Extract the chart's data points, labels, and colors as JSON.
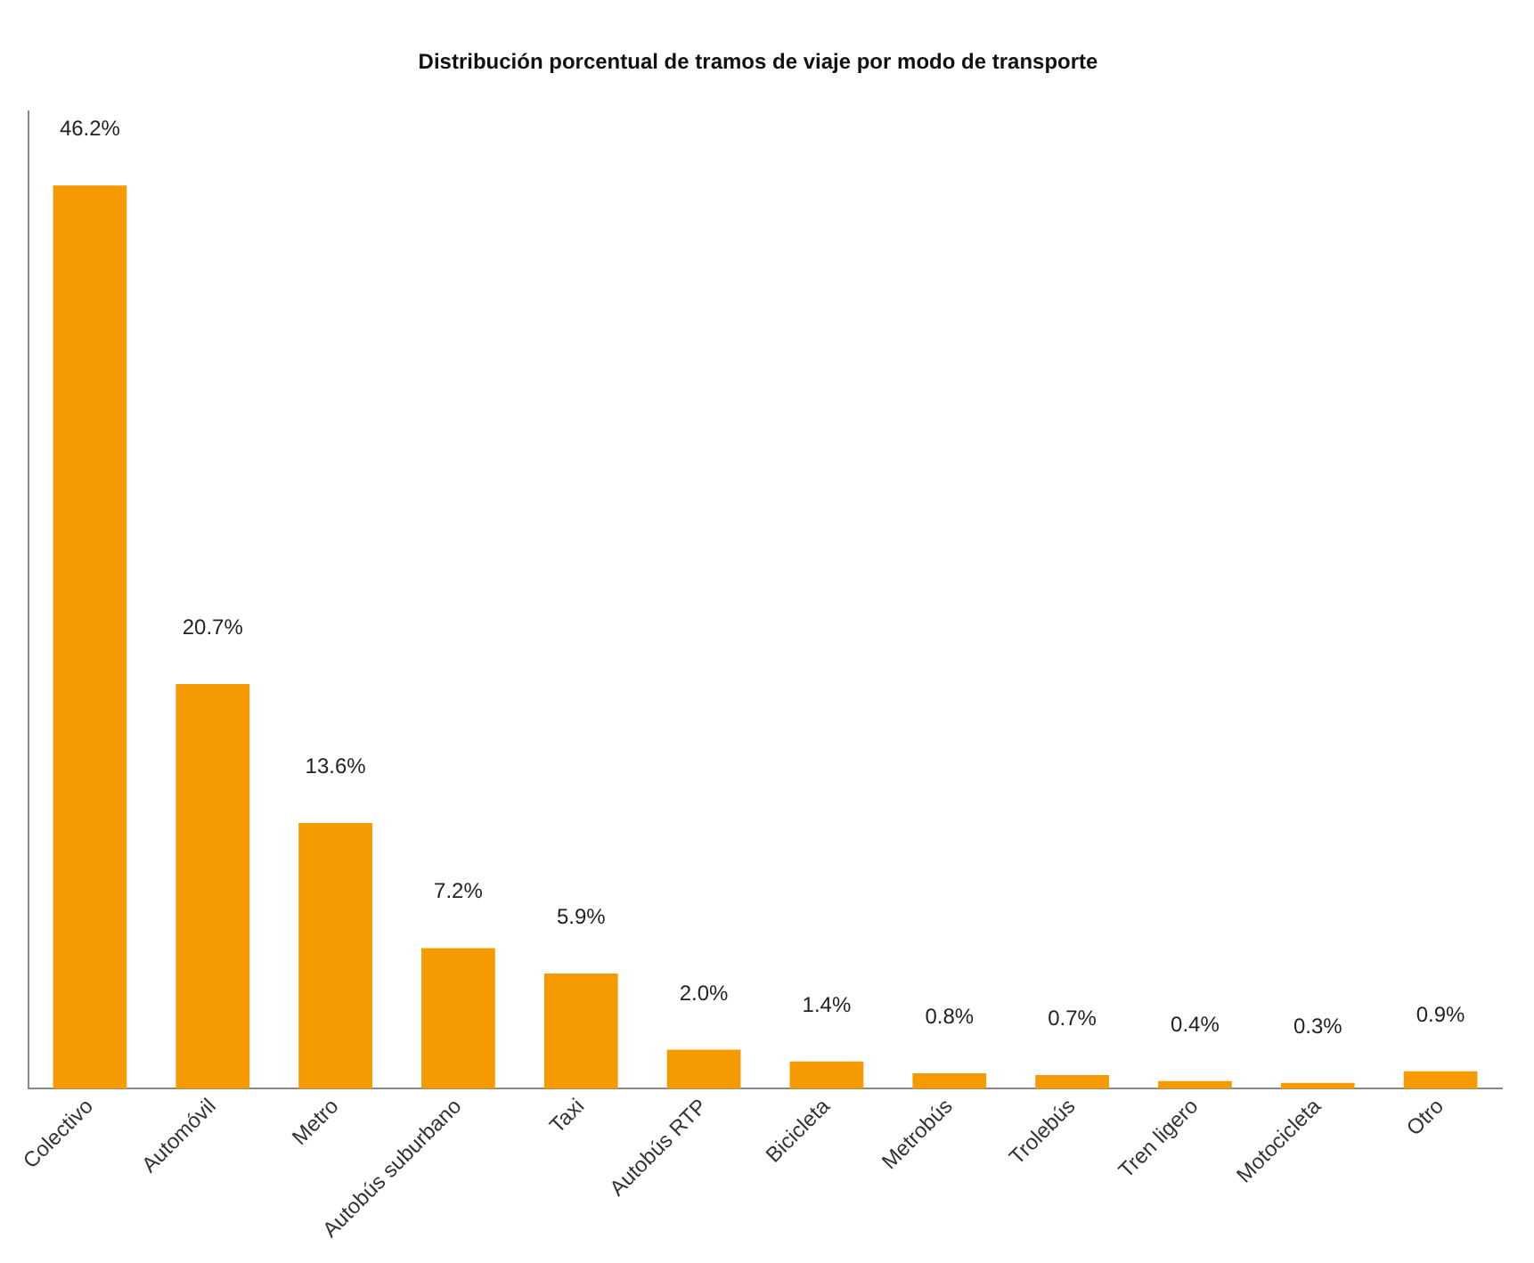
{
  "chart_data": {
    "type": "bar",
    "title": "Distribución porcentual de tramos de viaje por modo de transporte",
    "categories": [
      "Colectivo",
      "Automóvil",
      "Metro",
      "Autobús suburbano",
      "Taxi",
      "Autobús RTP",
      "Bicicleta",
      "Metrobús",
      "Trolebús",
      "Tren ligero",
      "Motocicleta",
      "Otro"
    ],
    "values": [
      46.2,
      20.7,
      13.6,
      7.2,
      5.9,
      2.0,
      1.4,
      0.8,
      0.7,
      0.4,
      0.3,
      0.9
    ],
    "value_labels": [
      "46.2%",
      "20.7%",
      "13.6%",
      "7.2%",
      "5.9%",
      "2.0%",
      "1.4%",
      "0.8%",
      "0.7%",
      "0.4%",
      "0.3%",
      "0.9%"
    ],
    "color": "#f59a00",
    "grid": false,
    "legend": false,
    "tick_labels": "x"
  }
}
